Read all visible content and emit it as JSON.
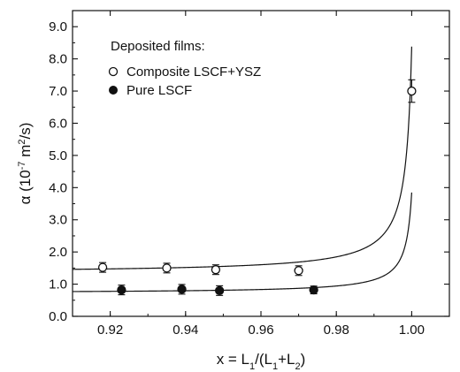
{
  "chart_data": {
    "type": "scatter",
    "title": "",
    "xlabel": "x = L1/(L1+L2)",
    "ylabel": "α (10-7 m2/s)",
    "xlim": [
      0.91,
      1.01
    ],
    "ylim": [
      0.0,
      9.5
    ],
    "x_ticks": [
      "0.92",
      "0.94",
      "0.96",
      "0.98",
      "1.00"
    ],
    "x_tick_values": [
      0.92,
      0.94,
      0.96,
      0.98,
      1.0
    ],
    "y_ticks": [
      "0.0",
      "1.0",
      "2.0",
      "3.0",
      "4.0",
      "5.0",
      "6.0",
      "7.0",
      "8.0",
      "9.0"
    ],
    "y_tick_values": [
      0,
      1,
      2,
      3,
      4,
      5,
      6,
      7,
      8,
      9
    ],
    "grid": false,
    "legend": {
      "title": "Deposited films:",
      "placement": "top-left"
    },
    "series": [
      {
        "name": "Composite LSCF+YSZ",
        "marker": "open-circle",
        "color": "#111111",
        "x": [
          0.918,
          0.935,
          0.948,
          0.97,
          1.0
        ],
        "y": [
          1.52,
          1.5,
          1.45,
          1.42,
          7.0
        ],
        "err": [
          0.15,
          0.15,
          0.15,
          0.15,
          0.35
        ],
        "fit_curve": {
          "asymptote_x": 1.0,
          "y0": 1.46,
          "x_end": 1.0,
          "y_end": 8.5
        }
      },
      {
        "name": "Pure LSCF",
        "marker": "filled-circle",
        "color": "#111111",
        "x": [
          0.923,
          0.939,
          0.949,
          0.974
        ],
        "y": [
          0.82,
          0.84,
          0.8,
          0.82
        ],
        "err": [
          0.15,
          0.15,
          0.15,
          0.12
        ],
        "fit_curve": {
          "asymptote_x": 1.0,
          "y0": 0.77,
          "x_end": 1.0,
          "y_end": 3.9
        }
      }
    ]
  }
}
